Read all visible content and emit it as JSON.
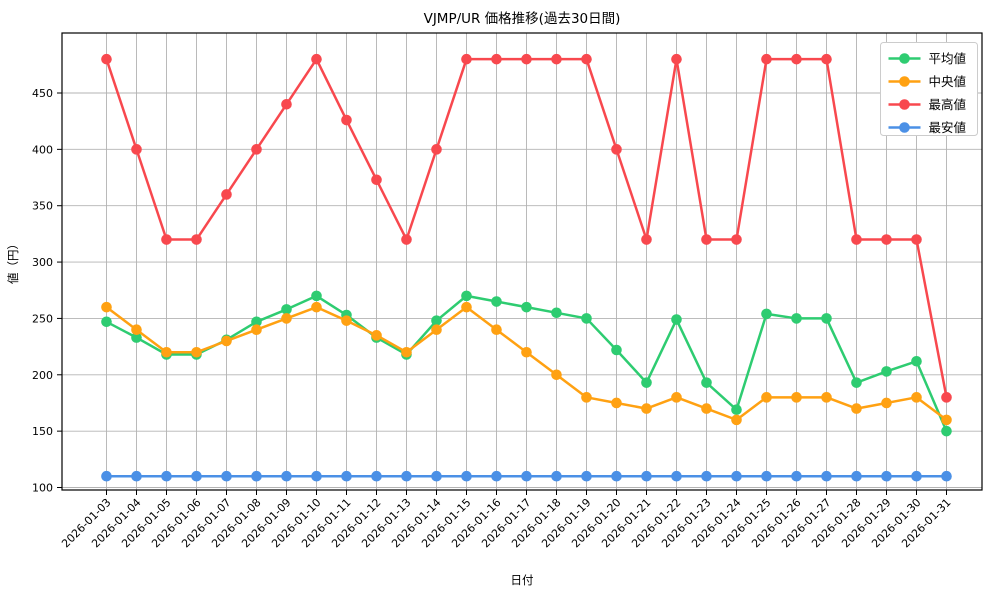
{
  "title": "VJMP/UR 価格推移(過去30日間)",
  "chart_data": {
    "type": "line",
    "title": "VJMP/UR 価格推移(過去30日間)",
    "xlabel": "日付",
    "ylabel": "値（円）",
    "x": [
      "2026-01-03",
      "2026-01-04",
      "2026-01-05",
      "2026-01-06",
      "2026-01-07",
      "2026-01-08",
      "2026-01-09",
      "2026-01-10",
      "2026-01-11",
      "2026-01-12",
      "2026-01-13",
      "2026-01-14",
      "2026-01-15",
      "2026-01-16",
      "2026-01-17",
      "2026-01-18",
      "2026-01-19",
      "2026-01-20",
      "2026-01-21",
      "2026-01-22",
      "2026-01-23",
      "2026-01-24",
      "2026-01-25",
      "2026-01-26",
      "2026-01-27",
      "2026-01-28",
      "2026-01-29",
      "2026-01-30",
      "2026-01-31"
    ],
    "series": [
      {
        "name": "平均値",
        "color": "#2ecc71",
        "values": [
          247,
          233,
          218,
          218,
          231,
          247,
          258,
          270,
          253,
          233,
          218,
          248,
          270,
          265,
          260,
          255,
          250,
          222,
          193,
          249,
          193,
          169,
          254,
          250,
          250,
          193,
          203,
          212,
          150
        ]
      },
      {
        "name": "中央値",
        "color": "#ffa112",
        "values": [
          260,
          240,
          220,
          220,
          230,
          240,
          250,
          260,
          248,
          235,
          220,
          240,
          260,
          240,
          220,
          200,
          180,
          175,
          170,
          180,
          170,
          160,
          180,
          180,
          180,
          170,
          175,
          180,
          160
        ]
      },
      {
        "name": "最高値",
        "color": "#f8484e",
        "values": [
          480,
          400,
          320,
          320,
          360,
          400,
          440,
          480,
          426,
          373,
          320,
          400,
          480,
          480,
          480,
          480,
          480,
          400,
          320,
          480,
          320,
          320,
          480,
          480,
          480,
          320,
          320,
          320,
          180
        ]
      },
      {
        "name": "最安値",
        "color": "#4b90e6",
        "values": [
          110,
          110,
          110,
          110,
          110,
          110,
          110,
          110,
          110,
          110,
          110,
          110,
          110,
          110,
          110,
          110,
          110,
          110,
          110,
          110,
          110,
          110,
          110,
          110,
          110,
          110,
          110,
          110,
          110
        ]
      }
    ],
    "yticks": [
      100,
      150,
      200,
      250,
      300,
      350,
      400,
      450
    ],
    "ylim": [
      97,
      503
    ],
    "grid": true,
    "grid_color": "#b3b3b3",
    "legend_position": "upper right",
    "marker": "o"
  }
}
